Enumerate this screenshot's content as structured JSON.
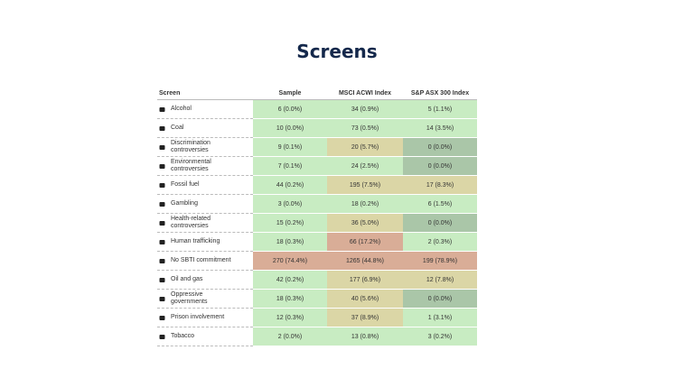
{
  "header": {
    "title": "Screens"
  },
  "table": {
    "columns": [
      "Screen",
      "Sample",
      "MSCI ACWI Index",
      "S&P ASX 300 Index"
    ],
    "rows": [
      [
        "Alcohol",
        "6 (0.0%)",
        "34 (0.9%)",
        "5 (1.1%)"
      ],
      [
        "Coal",
        "10 (0.0%)",
        "73 (0.5%)",
        "14 (3.5%)"
      ],
      [
        "Discrimination controversies",
        "9 (0.1%)",
        "20 (5.7%)",
        "0 (0.0%)"
      ],
      [
        "Environmental controversies",
        "7 (0.1%)",
        "24 (2.5%)",
        "0 (0.0%)"
      ],
      [
        "Fossil fuel",
        "44 (0.2%)",
        "195 (7.5%)",
        "17 (8.3%)"
      ],
      [
        "Gambling",
        "3 (0.0%)",
        "18 (0.2%)",
        "6 (1.5%)"
      ],
      [
        "Health-related controversies",
        "15 (0.2%)",
        "36 (5.0%)",
        "0 (0.0%)"
      ],
      [
        "Human trafficking",
        "18 (0.3%)",
        "66 (17.2%)",
        "2 (0.3%)"
      ],
      [
        "No SBTI commitment",
        "270 (74.4%)",
        "1265 (44.8%)",
        "199 (78.9%)"
      ],
      [
        "Oil and gas",
        "42 (0.2%)",
        "177 (6.9%)",
        "12 (7.8%)"
      ],
      [
        "Oppressive governments",
        "18 (0.3%)",
        "40 (5.6%)",
        "0 (0.0%)"
      ],
      [
        "Prison involvement",
        "12 (0.3%)",
        "37 (8.9%)",
        "1 (3.1%)"
      ],
      [
        "Tobacco",
        "2 (0.0%)",
        "13 (0.8%)",
        "3 (0.2%)"
      ]
    ],
    "cell_colors": [
      [
        "green",
        "green",
        "green"
      ],
      [
        "green",
        "green",
        "green"
      ],
      [
        "green",
        "khaki",
        "gray"
      ],
      [
        "green",
        "green",
        "gray"
      ],
      [
        "green",
        "khaki",
        "khaki"
      ],
      [
        "green",
        "green",
        "green"
      ],
      [
        "green",
        "khaki",
        "gray"
      ],
      [
        "green",
        "salmon",
        "green"
      ],
      [
        "salmon",
        "salmon",
        "salmon"
      ],
      [
        "green",
        "khaki",
        "khaki"
      ],
      [
        "green",
        "khaki",
        "gray"
      ],
      [
        "green",
        "khaki",
        "green"
      ],
      [
        "green",
        "green",
        "green"
      ]
    ]
  }
}
